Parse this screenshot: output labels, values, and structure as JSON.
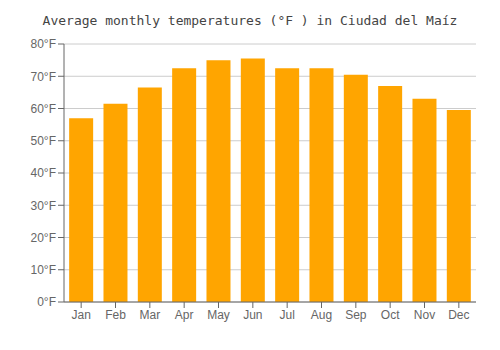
{
  "chart_data": {
    "type": "bar",
    "title": "Average monthly temperatures (°F ) in Ciudad del Maíz",
    "categories": [
      "Jan",
      "Feb",
      "Mar",
      "Apr",
      "May",
      "Jun",
      "Jul",
      "Aug",
      "Sep",
      "Oct",
      "Nov",
      "Dec"
    ],
    "values": [
      57,
      61.5,
      66.5,
      72.5,
      75,
      75.5,
      72.5,
      72.5,
      70.5,
      67,
      63,
      59.5
    ],
    "color": "#FFA500",
    "ylim": [
      0,
      80
    ],
    "yticks": [
      {
        "value": 0,
        "label": "0°F"
      },
      {
        "value": 10,
        "label": "10°F"
      },
      {
        "value": 20,
        "label": "20°F"
      },
      {
        "value": 30,
        "label": "30°F"
      },
      {
        "value": 40,
        "label": "40°F"
      },
      {
        "value": 50,
        "label": "50°F"
      },
      {
        "value": 60,
        "label": "60°F"
      },
      {
        "value": 70,
        "label": "70°F"
      },
      {
        "value": 80,
        "label": "80°F"
      }
    ],
    "grid": true
  }
}
